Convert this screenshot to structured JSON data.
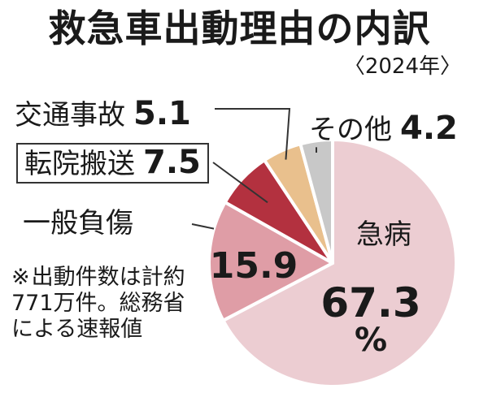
{
  "chart_data": {
    "type": "pie",
    "title": "救急車出動理由の内訳",
    "subtitle": "〈2024年〉",
    "unit": "%",
    "slices": [
      {
        "label": "急病",
        "value": 67.3,
        "color": "#eccdd2"
      },
      {
        "label": "一般負傷",
        "value": 15.9,
        "color": "#df9da6"
      },
      {
        "label": "転院搬送",
        "value": 7.5,
        "color": "#b3313f"
      },
      {
        "label": "交通事故",
        "value": 5.1,
        "color": "#e9c08d"
      },
      {
        "label": "その他",
        "value": 4.2,
        "color": "#c8c8c8"
      }
    ],
    "value_labels": {
      "急病": "67.3",
      "一般負傷": "15.9",
      "転院搬送": "7.5",
      "交通事故": "5.1",
      "その他": "4.2"
    }
  },
  "note": {
    "mark": "※",
    "text": "出動件数は計約771万件。総務省による速報値"
  }
}
